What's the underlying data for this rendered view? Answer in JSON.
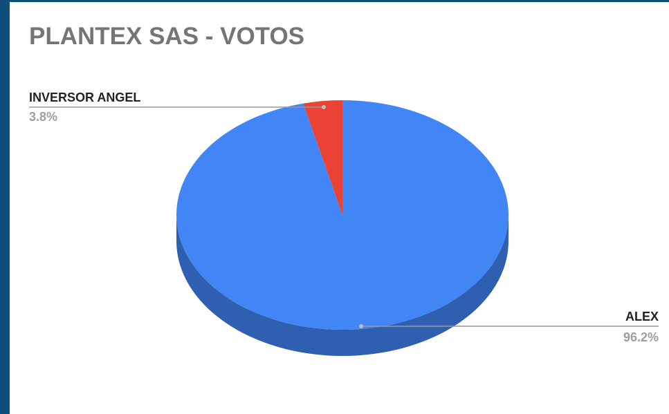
{
  "chart_data": {
    "type": "pie",
    "style": "3d",
    "title": "PLANTEX SAS - VOTOS",
    "slices": [
      {
        "label": "ALEX",
        "value": 96.2,
        "display": "96.2%",
        "color": "#4285f4",
        "side_color": "#2f5fb0"
      },
      {
        "label": "INVERSOR ANGEL",
        "value": 3.8,
        "display": "3.8%",
        "color": "#ea4335",
        "side_color": "#b3322a"
      }
    ],
    "legend": "none"
  },
  "colors": {
    "frame_border": "#0e4f7c",
    "title": "#757575",
    "label_name": "#222222",
    "label_value": "#9e9e9e",
    "leader_line": "#999999"
  }
}
